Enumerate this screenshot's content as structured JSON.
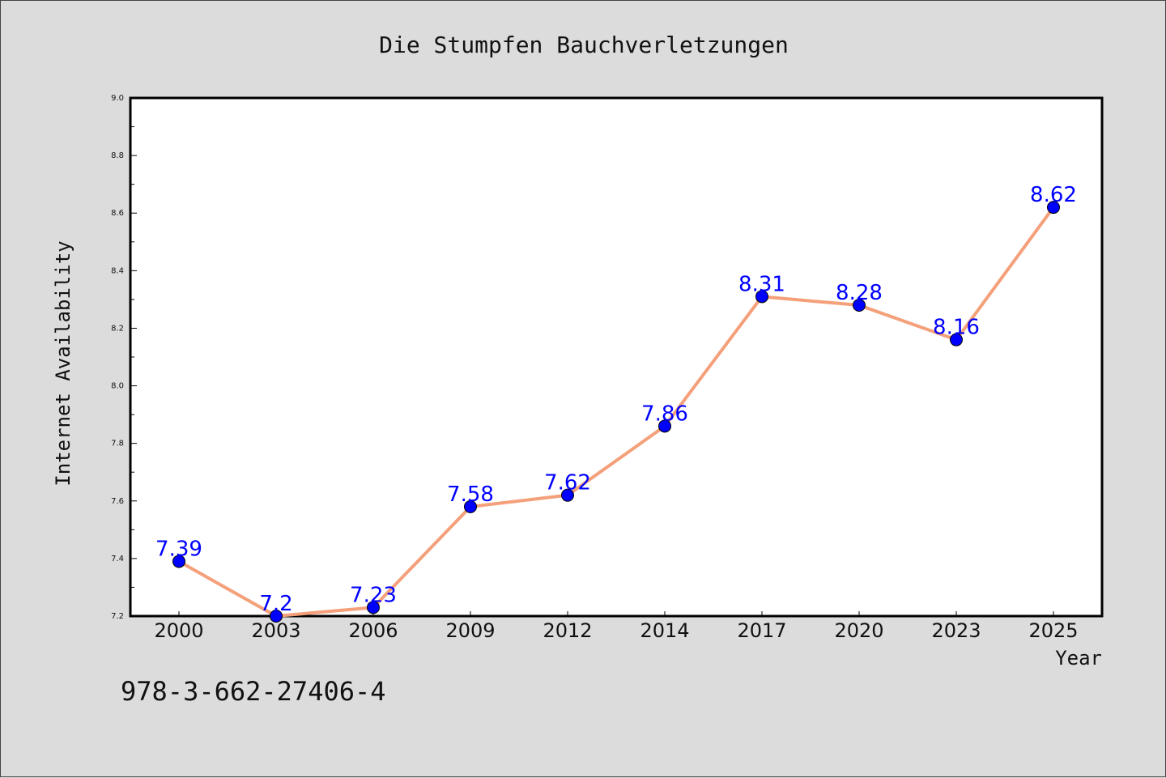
{
  "chart_data": {
    "type": "line",
    "title": "Die Stumpfen Bauchverletzungen",
    "xlabel": "Year",
    "ylabel": "Internet Availability",
    "categories": [
      "2000",
      "2003",
      "2006",
      "2009",
      "2012",
      "2014",
      "2017",
      "2020",
      "2023",
      "2025"
    ],
    "values": [
      7.39,
      7.2,
      7.23,
      7.58,
      7.62,
      7.86,
      8.31,
      8.28,
      8.16,
      8.62
    ],
    "data_labels": [
      "7.39",
      "7.2",
      "7.23",
      "7.58",
      "7.62",
      "7.86",
      "8.31",
      "8.28",
      "8.16",
      "8.62"
    ],
    "ylim": [
      7.2,
      9.0
    ],
    "yticks": [
      "7.2",
      "7.4",
      "7.6",
      "7.8",
      "8.0",
      "8.2",
      "8.4",
      "8.6",
      "8.8",
      "9.0"
    ],
    "grid": false,
    "line_color": "#f4a07a",
    "marker_color": "#0000ff",
    "label_color": "#0000ff",
    "plot_background": "#ffffff",
    "figure_background": "#dcdcdc"
  },
  "annotation": {
    "isbn": "978-3-662-27406-4"
  }
}
